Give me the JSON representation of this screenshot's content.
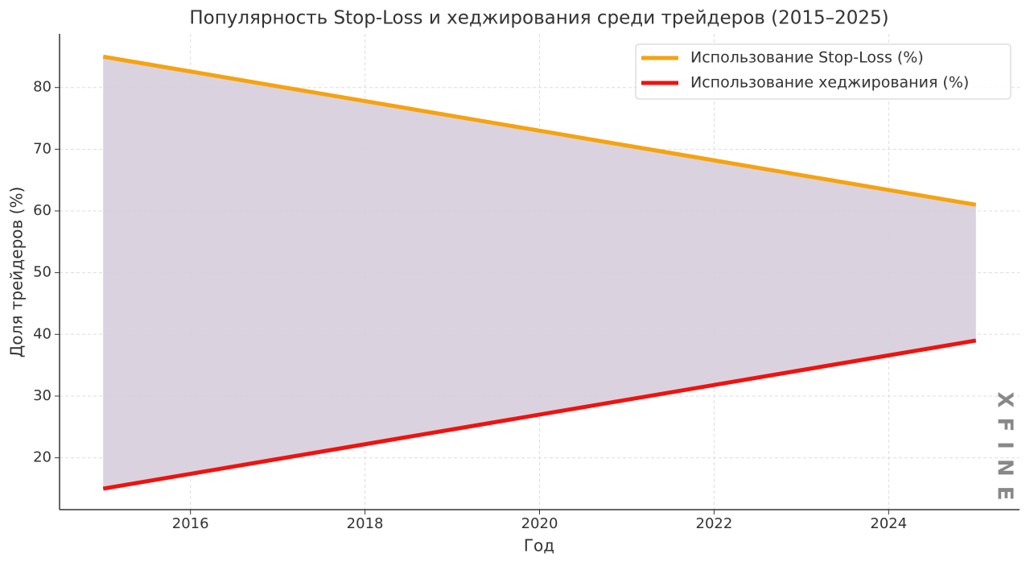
{
  "chart_data": {
    "type": "line",
    "title": "Популярность Stop-Loss и хеджирования среди трейдеров (2015–2025)",
    "xlabel": "Год",
    "ylabel": "Доля трейдеров (%)",
    "x": [
      2015,
      2016,
      2017,
      2018,
      2019,
      2020,
      2021,
      2022,
      2023,
      2024,
      2025
    ],
    "series": [
      {
        "name": "Использование Stop-Loss (%)",
        "color": "#f5a30f",
        "values": [
          85,
          82.6,
          80.2,
          77.8,
          75.4,
          73,
          70.6,
          68.2,
          65.8,
          63.4,
          61
        ]
      },
      {
        "name": "Использование хеджирования (%)",
        "color": "#f0120f",
        "values": [
          15,
          17.4,
          19.8,
          22.2,
          24.6,
          27,
          29.4,
          31.8,
          34.2,
          36.6,
          39
        ]
      }
    ],
    "fill_between": true,
    "fill_color": "#d6cddb",
    "xlim": [
      2014.5,
      2025.5
    ],
    "xticks": [
      2016,
      2018,
      2020,
      2022,
      2024
    ],
    "ylim": [
      11.6,
      88.7
    ],
    "yticks": [
      20,
      30,
      40,
      50,
      60,
      70,
      80
    ],
    "grid": true,
    "legend": "upper right",
    "watermark": "XFINE"
  }
}
